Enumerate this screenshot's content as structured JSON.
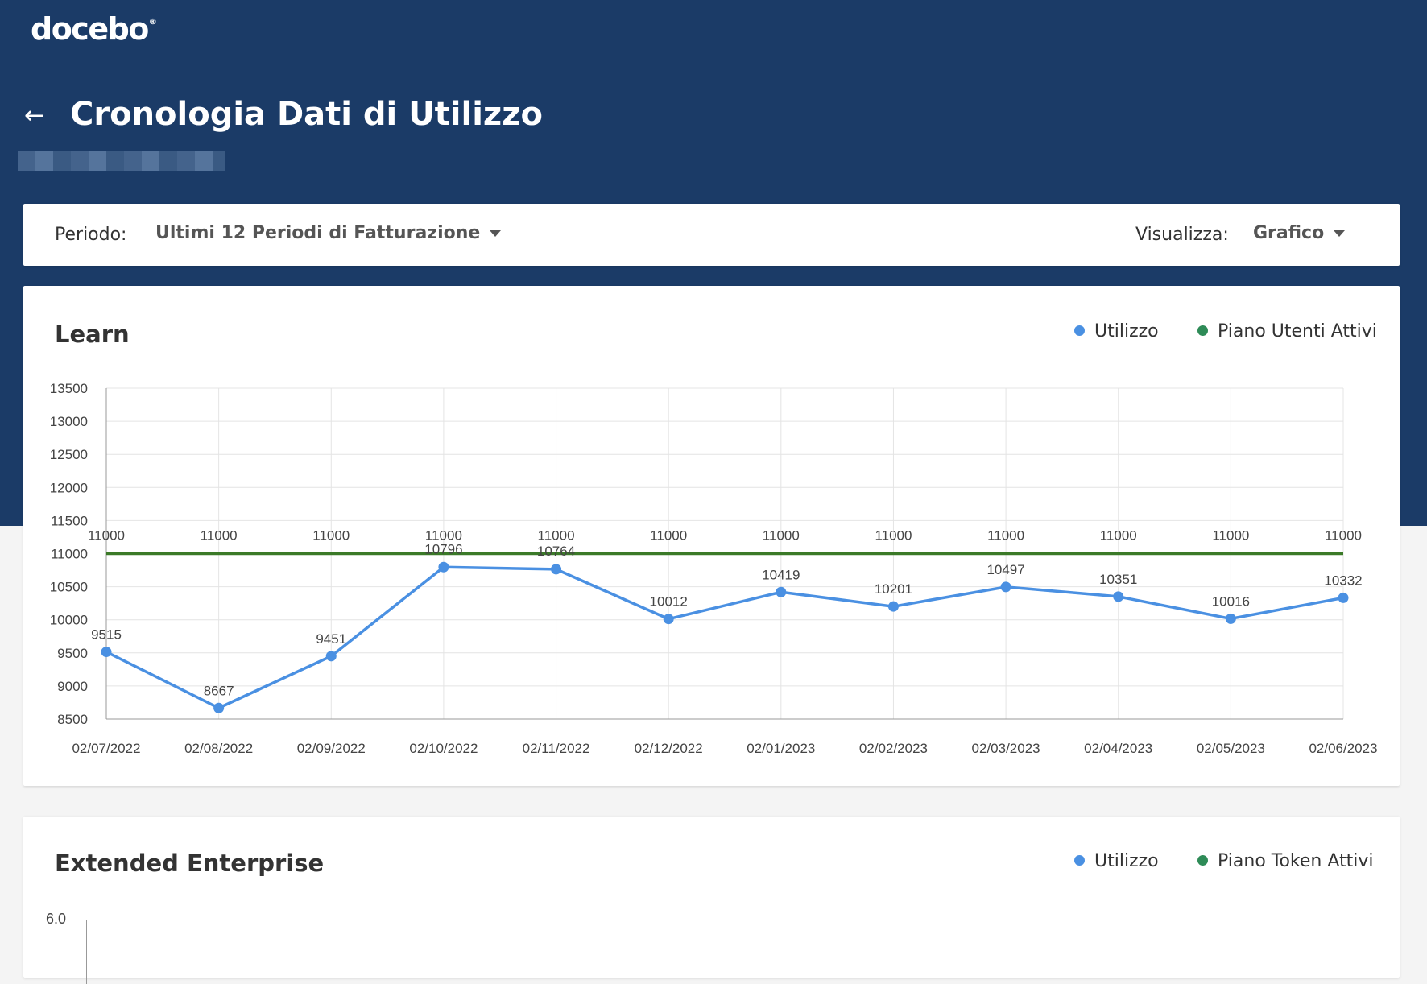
{
  "brand": {
    "logo": "docebo"
  },
  "header": {
    "title": "Cronologia Dati di Utilizzo"
  },
  "filters": {
    "period_label": "Periodo:",
    "period_value": "Ultimi 12 Periodi di Fatturazione",
    "view_label": "Visualizza:",
    "view_value": "Grafico"
  },
  "cards": {
    "learn": {
      "title": "Learn",
      "legend_usage": "Utilizzo",
      "legend_plan": "Piano Utenti Attivi"
    },
    "extended": {
      "title": "Extended Enterprise",
      "legend_usage": "Utilizzo",
      "legend_plan": "Piano Token Attivi",
      "y_top_label": "6.0"
    }
  },
  "colors": {
    "header_bg": "#1b3b67",
    "usage": "#4a90e2",
    "plan": "#3b7a28",
    "legend_plan_dot": "#2e8b57"
  },
  "chart_data": {
    "type": "line",
    "categories": [
      "02/07/2022",
      "02/08/2022",
      "02/09/2022",
      "02/10/2022",
      "02/11/2022",
      "02/12/2022",
      "02/01/2023",
      "02/02/2023",
      "02/03/2023",
      "02/04/2023",
      "02/05/2023",
      "02/06/2023"
    ],
    "series": [
      {
        "name": "Utilizzo",
        "values": [
          9515,
          8667,
          9451,
          10796,
          10764,
          10012,
          10419,
          10201,
          10497,
          10351,
          10016,
          10332
        ]
      },
      {
        "name": "Piano Utenti Attivi",
        "values": [
          11000,
          11000,
          11000,
          11000,
          11000,
          11000,
          11000,
          11000,
          11000,
          11000,
          11000,
          11000
        ]
      }
    ],
    "y_ticks": [
      8500,
      9000,
      9500,
      10000,
      10500,
      11000,
      11500,
      12000,
      12500,
      13000,
      13500
    ],
    "ylim": [
      8500,
      13500
    ],
    "grid": true
  }
}
